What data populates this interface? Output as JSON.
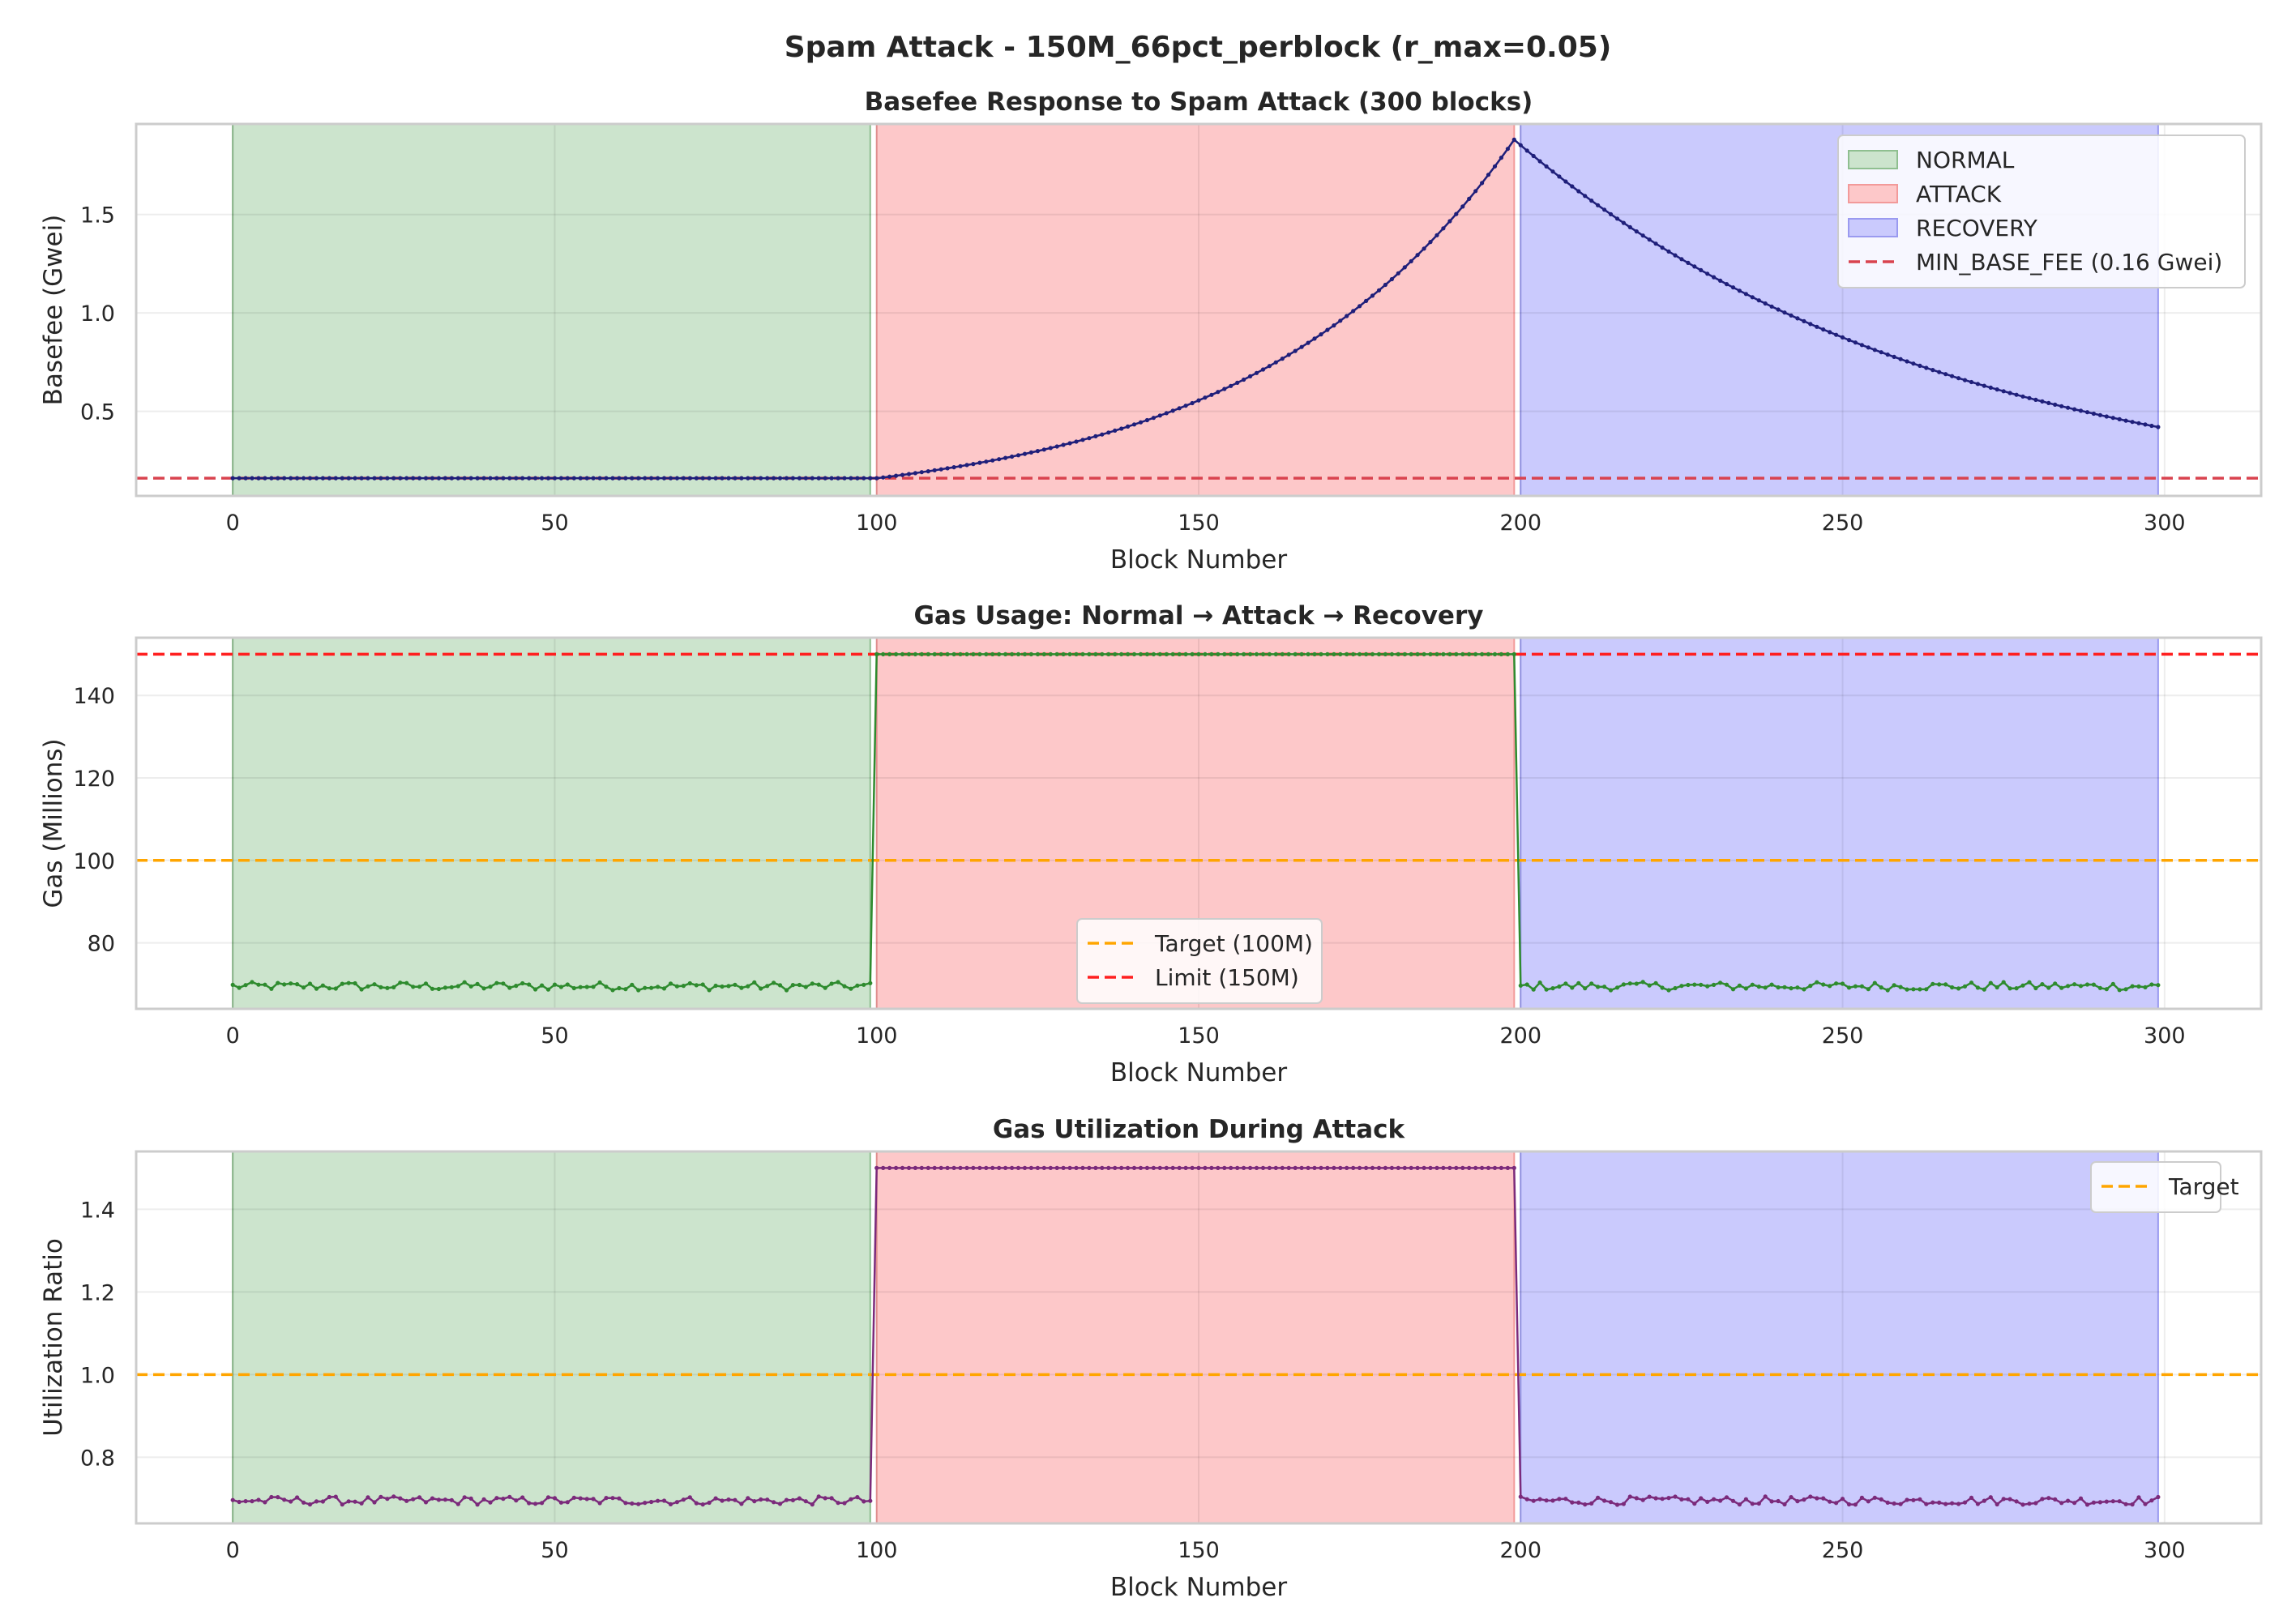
{
  "figure": {
    "suptitle": "Spam Attack - 150M_66pct_perblock (r_max=0.05)"
  },
  "colors": {
    "normal_fill": "#cce4cd",
    "attack_fill": "#fdc8c9",
    "recovery_fill": "#cacafd",
    "normal_edge": "#8fbf90",
    "attack_edge": "#f29a9a",
    "recovery_edge": "#9a9af0",
    "basefee_line": "#1f1f7a",
    "gas_line": "#2e8b2e",
    "util_line": "#7b2a7b",
    "target": "#ffa500",
    "limit": "#ff1f1f",
    "min_fee": "#d9434f"
  },
  "chart_data": [
    {
      "type": "line",
      "title": "Basefee Response to Spam Attack (300 blocks)",
      "xlabel": "Block Number",
      "ylabel": "Basefee (Gwei)",
      "xlim": [
        -15,
        315
      ],
      "ylim": [
        0.07,
        1.96
      ],
      "xticks": [
        0,
        50,
        100,
        150,
        200,
        250,
        300
      ],
      "yticks": [
        0.5,
        1.0,
        1.5
      ],
      "ytick_labels": [
        "0.5",
        "1.0",
        "1.5"
      ],
      "grid": true,
      "legend_position": "top-right",
      "phases": [
        {
          "name": "NORMAL",
          "start": 0,
          "end": 99
        },
        {
          "name": "ATTACK",
          "start": 100,
          "end": 199
        },
        {
          "name": "RECOVERY",
          "start": 200,
          "end": 299
        }
      ],
      "hlines": [
        {
          "name": "MIN_BASE_FEE (0.16 Gwei)",
          "y": 0.16,
          "style": "dashed"
        }
      ],
      "series": {
        "shape": "basefee",
        "min": 0.16,
        "peak": 1.88,
        "end": 0.42,
        "attack_start": 100,
        "recovery_start": 199,
        "x_end": 299
      }
    },
    {
      "type": "line",
      "title": "Gas Usage: Normal → Attack → Recovery",
      "xlabel": "Block Number",
      "ylabel": "Gas (Millions)",
      "xlim": [
        -15,
        315
      ],
      "ylim": [
        64,
        154
      ],
      "xticks": [
        0,
        50,
        100,
        150,
        200,
        250,
        300
      ],
      "yticks": [
        80,
        100,
        120,
        140
      ],
      "ytick_labels": [
        "80",
        "100",
        "120",
        "140"
      ],
      "grid": true,
      "legend_position": "bottom-center",
      "phases": [
        {
          "name": "NORMAL",
          "start": 0,
          "end": 99
        },
        {
          "name": "ATTACK",
          "start": 100,
          "end": 199
        },
        {
          "name": "RECOVERY",
          "start": 200,
          "end": 299
        }
      ],
      "hlines": [
        {
          "name": "Target (100M)",
          "y": 100,
          "style": "dashed",
          "color": "target"
        },
        {
          "name": "Limit (150M)",
          "y": 150,
          "style": "dashed",
          "color": "limit"
        }
      ],
      "series": {
        "shape": "step",
        "normal_level": 69.5,
        "attack_level": 150,
        "noise": 1.0,
        "x_end": 299
      }
    },
    {
      "type": "line",
      "title": "Gas Utilization During Attack",
      "xlabel": "Block Number",
      "ylabel": "Utilization Ratio",
      "xlim": [
        -15,
        315
      ],
      "ylim": [
        0.64,
        1.54
      ],
      "xticks": [
        0,
        50,
        100,
        150,
        200,
        250,
        300
      ],
      "yticks": [
        0.8,
        1.0,
        1.2,
        1.4
      ],
      "ytick_labels": [
        "0.8",
        "1.0",
        "1.2",
        "1.4"
      ],
      "grid": true,
      "legend_position": "top-right",
      "phases": [
        {
          "name": "NORMAL",
          "start": 0,
          "end": 99
        },
        {
          "name": "ATTACK",
          "start": 100,
          "end": 199
        },
        {
          "name": "RECOVERY",
          "start": 200,
          "end": 299
        }
      ],
      "hlines": [
        {
          "name": "Target",
          "y": 1.0,
          "style": "dashed",
          "color": "target"
        }
      ],
      "series": {
        "shape": "step",
        "normal_level": 0.695,
        "attack_level": 1.5,
        "noise": 0.01,
        "x_end": 299
      }
    }
  ]
}
